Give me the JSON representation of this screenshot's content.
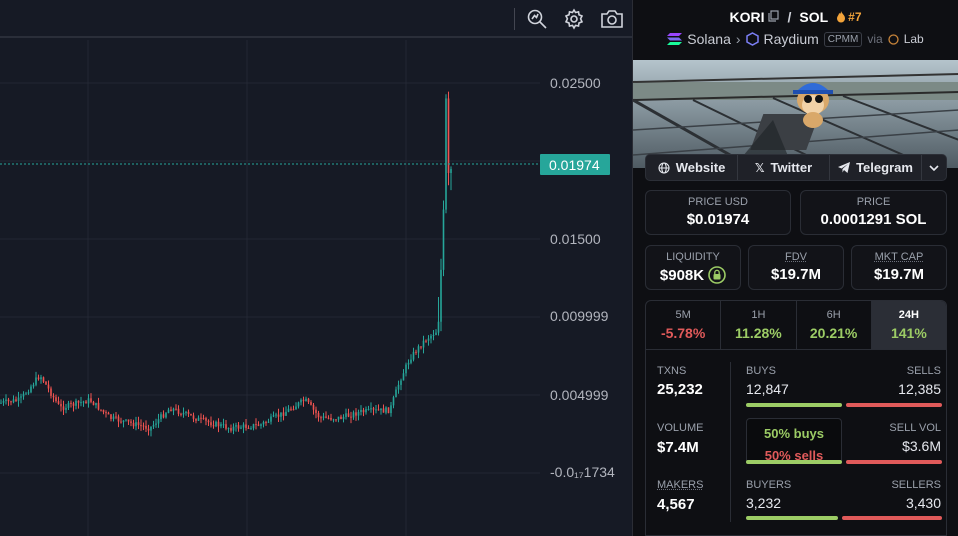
{
  "chart": {
    "price_labels": [
      "0.02500",
      "0.01500",
      "0.009999",
      "0.004999",
      "-0.0₁₇1734"
    ],
    "current_price": "0.01974",
    "colors": {
      "up": "#26a69a",
      "down": "#ef5350",
      "tag": "#26a69a",
      "grid": "#232733"
    }
  },
  "toolbar": {
    "icons": [
      "magnifier-chart-icon",
      "gear-icon",
      "camera-icon"
    ]
  },
  "pair": {
    "base": "KORI",
    "quote": "SOL",
    "separator": "/",
    "rank": "#7",
    "chain": "Solana",
    "dex": "Raydium",
    "pool_type": "CPMM",
    "via_label": "via",
    "launchpad": "Lab"
  },
  "links": {
    "website": "Website",
    "twitter": "Twitter",
    "telegram": "Telegram"
  },
  "prices": {
    "usd_label": "PRICE USD",
    "usd_value": "$0.01974",
    "native_label": "PRICE",
    "native_value": "0.0001291 SOL"
  },
  "metrics": {
    "liquidity_label": "LIQUIDITY",
    "liquidity_value": "$908K",
    "fdv_label": "FDV",
    "fdv_value": "$19.7M",
    "mcap_label": "MKT CAP",
    "mcap_value": "$19.7M"
  },
  "timeframes": [
    {
      "name": "5M",
      "change": "-5.78%",
      "color": "#e05a5a"
    },
    {
      "name": "1H",
      "change": "11.28%",
      "color": "#9ccc65"
    },
    {
      "name": "6H",
      "change": "20.21%",
      "color": "#9ccc65"
    },
    {
      "name": "24H",
      "change": "141%",
      "color": "#9ccc65"
    }
  ],
  "stats": {
    "txns_label": "TXNS",
    "txns_value": "25,232",
    "buys_label": "BUYS",
    "buys_value": "12,847",
    "sells_label": "SELLS",
    "sells_value": "12,385",
    "volume_label": "VOLUME",
    "volume_value": "$7.4M",
    "sellvol_label": "SELL VOL",
    "sellvol_value": "$3.6M",
    "makers_label": "MAKERS",
    "makers_value": "4,567",
    "buyers_label": "BUYERS",
    "buyers_value": "3,232",
    "sellers_label": "SELLERS",
    "sellers_value": "3,430",
    "ratio_buys": "50% buys",
    "ratio_sells": "50% sells",
    "buy_share": 0.5,
    "buyer_share": 0.48
  }
}
